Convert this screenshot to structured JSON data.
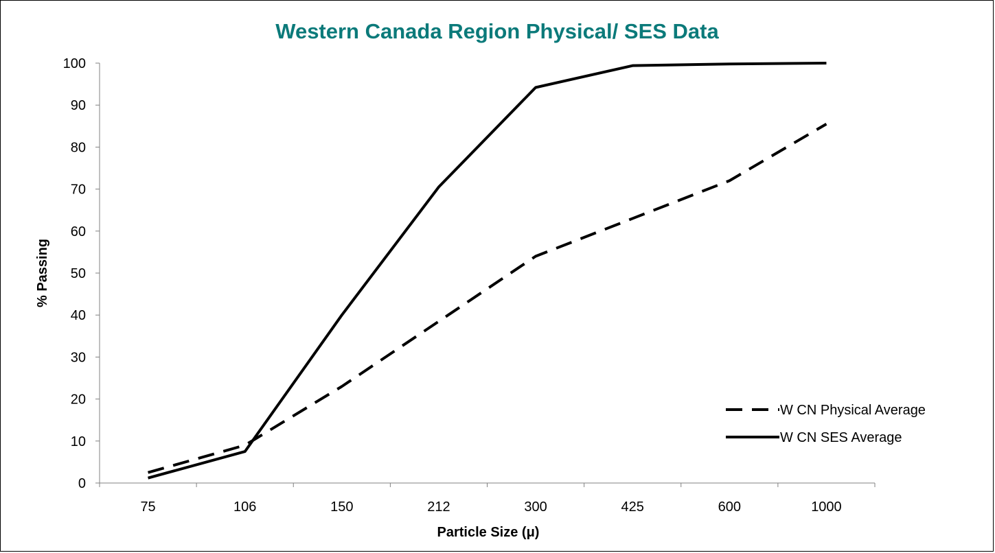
{
  "colors": {
    "title": "#0b7a7a",
    "line": "#000000",
    "axis": "#808080"
  },
  "chart_data": {
    "type": "line",
    "title": "Western Canada Region Physical/ SES Data",
    "xlabel": "Particle Size (μ)",
    "ylabel": "% Passing",
    "categories": [
      "75",
      "106",
      "150",
      "212",
      "300",
      "425",
      "600",
      "1000"
    ],
    "ylim": [
      0,
      100
    ],
    "yticks": [
      0,
      10,
      20,
      30,
      40,
      50,
      60,
      70,
      80,
      90,
      100
    ],
    "grid": false,
    "legend_position": "right",
    "series": [
      {
        "name": "W CN Physical Average",
        "style": "dashed",
        "values": [
          2.5,
          9,
          23,
          38.5,
          54,
          63,
          72,
          85.5
        ]
      },
      {
        "name": "W CN SES Average",
        "style": "solid",
        "values": [
          1.2,
          7.5,
          40,
          70.5,
          94.2,
          99.4,
          99.8,
          100
        ]
      }
    ]
  }
}
